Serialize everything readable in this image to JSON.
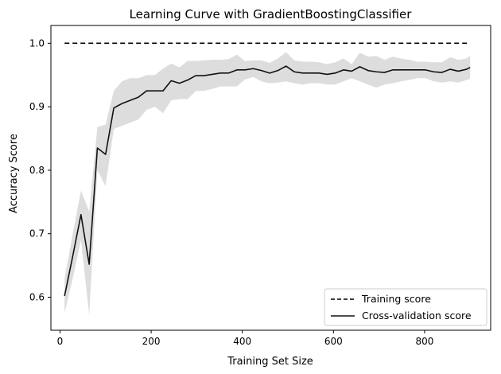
{
  "chart_data": {
    "type": "line",
    "title": "Learning Curve with GradientBoostingClassifier",
    "xlabel": "Training Set Size",
    "ylabel": "Accuracy Score",
    "xlim": [
      -20,
      945
    ],
    "ylim": [
      0.548,
      1.028
    ],
    "xticks": [
      0,
      200,
      400,
      600,
      800
    ],
    "yticks": [
      0.6,
      0.7,
      0.8,
      0.9,
      1.0
    ],
    "ytick_labels": [
      "0.6",
      "0.7",
      "0.8",
      "0.9",
      "1.0"
    ],
    "grid": false,
    "legend_position": "lower-right",
    "x": [
      10,
      28,
      46,
      64,
      82,
      100,
      118,
      136,
      154,
      172,
      190,
      208,
      226,
      244,
      262,
      280,
      298,
      316,
      334,
      352,
      370,
      388,
      406,
      424,
      442,
      460,
      478,
      496,
      514,
      532,
      550,
      568,
      586,
      604,
      622,
      640,
      658,
      676,
      694,
      712,
      730,
      748,
      766,
      784,
      802,
      820,
      838,
      856,
      874,
      892,
      900
    ],
    "series": [
      {
        "name": "Training score",
        "style": "dashed",
        "color": "#000000",
        "values": [
          1.0,
          1.0,
          1.0,
          1.0,
          1.0,
          1.0,
          1.0,
          1.0,
          1.0,
          1.0,
          1.0,
          1.0,
          1.0,
          1.0,
          1.0,
          1.0,
          1.0,
          1.0,
          1.0,
          1.0,
          1.0,
          1.0,
          1.0,
          1.0,
          1.0,
          1.0,
          1.0,
          1.0,
          1.0,
          1.0,
          1.0,
          1.0,
          1.0,
          1.0,
          1.0,
          1.0,
          1.0,
          1.0,
          1.0,
          1.0,
          1.0,
          1.0,
          1.0,
          1.0,
          1.0,
          1.0,
          1.0,
          1.0,
          1.0,
          1.0,
          1.0
        ]
      },
      {
        "name": "Cross-validation score",
        "style": "solid",
        "color": "#111111",
        "values": [
          0.602,
          0.665,
          0.73,
          0.652,
          0.835,
          0.825,
          0.898,
          0.905,
          0.91,
          0.915,
          0.925,
          0.925,
          0.925,
          0.941,
          0.937,
          0.942,
          0.949,
          0.949,
          0.951,
          0.953,
          0.953,
          0.958,
          0.958,
          0.96,
          0.957,
          0.953,
          0.957,
          0.964,
          0.955,
          0.953,
          0.953,
          0.953,
          0.951,
          0.953,
          0.958,
          0.956,
          0.963,
          0.957,
          0.955,
          0.954,
          0.958,
          0.958,
          0.958,
          0.958,
          0.958,
          0.955,
          0.954,
          0.959,
          0.956,
          0.959,
          0.962
        ],
        "band_lower": [
          0.575,
          0.63,
          0.69,
          0.572,
          0.8,
          0.775,
          0.865,
          0.87,
          0.875,
          0.88,
          0.895,
          0.9,
          0.89,
          0.91,
          0.912,
          0.912,
          0.925,
          0.925,
          0.928,
          0.932,
          0.932,
          0.932,
          0.943,
          0.947,
          0.94,
          0.937,
          0.938,
          0.94,
          0.937,
          0.935,
          0.937,
          0.937,
          0.935,
          0.935,
          0.94,
          0.945,
          0.94,
          0.935,
          0.93,
          0.935,
          0.937,
          0.94,
          0.942,
          0.945,
          0.945,
          0.94,
          0.938,
          0.94,
          0.938,
          0.942,
          0.944
        ],
        "band_upper": [
          0.63,
          0.7,
          0.768,
          0.735,
          0.868,
          0.872,
          0.925,
          0.94,
          0.945,
          0.945,
          0.95,
          0.95,
          0.96,
          0.968,
          0.962,
          0.972,
          0.972,
          0.973,
          0.974,
          0.974,
          0.975,
          0.982,
          0.972,
          0.973,
          0.973,
          0.969,
          0.976,
          0.986,
          0.973,
          0.971,
          0.971,
          0.97,
          0.967,
          0.97,
          0.976,
          0.967,
          0.985,
          0.979,
          0.98,
          0.974,
          0.979,
          0.976,
          0.974,
          0.971,
          0.971,
          0.97,
          0.97,
          0.978,
          0.974,
          0.976,
          0.98
        ]
      }
    ],
    "band_color": "#dddddd"
  }
}
